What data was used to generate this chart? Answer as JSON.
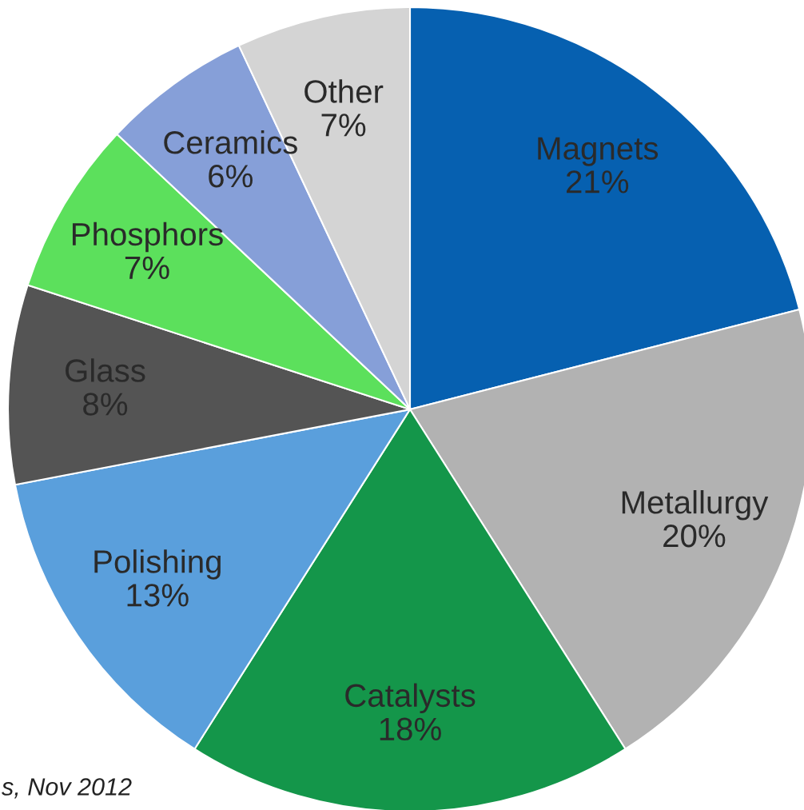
{
  "chart_data": {
    "type": "pie",
    "categories": [
      "Magnets",
      "Metallurgy",
      "Catalysts",
      "Polishing",
      "Glass",
      "Phosphors",
      "Ceramics",
      "Other"
    ],
    "values": [
      21,
      20,
      18,
      13,
      8,
      7,
      6,
      7
    ],
    "colors": [
      "#0660b0",
      "#b2b2b2",
      "#14964a",
      "#5a9fdc",
      "#545454",
      "#5ce05c",
      "#869fd8",
      "#d4d4d4"
    ],
    "value_labels": [
      "21%",
      "20%",
      "18%",
      "13%",
      "8%",
      "7%",
      "6%",
      "7%"
    ],
    "annotations": [
      "s, Nov 2012"
    ]
  }
}
